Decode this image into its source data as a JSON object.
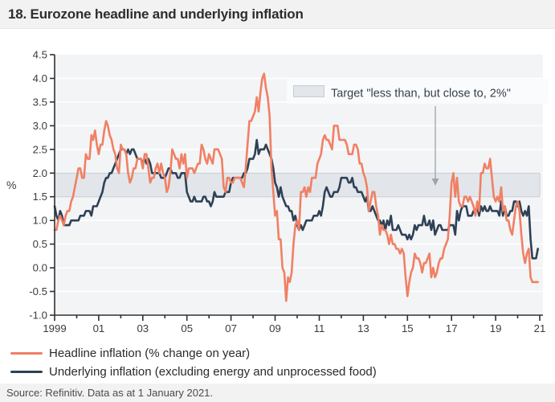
{
  "header": {
    "title": "18. Eurozone headline and underlying inflation"
  },
  "footer": {
    "source": "Source: Refinitiv. Data as at 1 January 2021."
  },
  "colors": {
    "headline": "#f08064",
    "underlying": "#2e4156",
    "plot_bg": "#f3f4f6",
    "gridline": "#ffffff",
    "band_fill": "#e2e6ea",
    "band_border": "#c6ccd3",
    "axis": "#303030",
    "tick_label": "#3b3b3b",
    "annotation_text": "#36414d",
    "annotation_bg": "#fafbfc",
    "arrow": "#9aa4ad",
    "header_bg": "#f1f2f1"
  },
  "chart_data": {
    "type": "line",
    "title": "18. Eurozone headline and underlying inflation",
    "xlabel": "",
    "ylabel": "%",
    "ylim": [
      -1.0,
      4.5
    ],
    "ytick_step": 0.5,
    "ytick_labels": [
      "4.5",
      "4.0",
      "3.5",
      "3.0",
      "2.5",
      "2.0",
      "1.5",
      "1.0",
      "0.5",
      "0.0",
      "-0.5",
      "-1.0"
    ],
    "x_start": "1999-01",
    "x_end": "2020-12",
    "frequency": "monthly",
    "x_year_range": [
      1999,
      2021
    ],
    "xtick_labels": [
      "1999",
      "01",
      "03",
      "05",
      "07",
      "09",
      "11",
      "13",
      "15",
      "17",
      "19",
      "21"
    ],
    "grid": true,
    "legend_position": "bottom-left",
    "target_band": {
      "from": 1.5,
      "to": 2.0,
      "label": "Target \"less than, but close to, 2%\""
    },
    "series": [
      {
        "name": "Headline inflation (% change on year)",
        "color": "#f08064",
        "values": [
          0.8,
          0.8,
          1.0,
          1.1,
          1.0,
          0.9,
          1.1,
          1.2,
          1.2,
          1.4,
          1.5,
          1.7,
          1.9,
          2.1,
          2.1,
          1.9,
          1.9,
          2.4,
          2.3,
          2.3,
          2.8,
          2.7,
          2.9,
          2.6,
          2.4,
          2.6,
          2.6,
          2.9,
          3.1,
          3.0,
          2.8,
          2.7,
          2.5,
          2.4,
          2.1,
          2.0,
          2.6,
          2.5,
          2.5,
          2.4,
          2.0,
          1.8,
          1.9,
          2.1,
          2.1,
          2.3,
          2.3,
          2.3,
          2.1,
          2.4,
          2.4,
          2.1,
          1.8,
          1.9,
          1.9,
          2.1,
          2.2,
          2.0,
          2.2,
          2.0,
          1.9,
          1.6,
          1.7,
          2.0,
          2.5,
          2.4,
          2.3,
          2.3,
          2.1,
          2.4,
          2.2,
          2.4,
          1.9,
          2.1,
          2.1,
          2.1,
          2.0,
          2.1,
          2.2,
          2.2,
          2.6,
          2.5,
          2.3,
          2.2,
          2.4,
          2.3,
          2.2,
          2.5,
          2.5,
          2.5,
          2.4,
          2.3,
          1.7,
          1.6,
          1.9,
          1.9,
          1.8,
          1.8,
          1.9,
          1.9,
          1.9,
          1.9,
          1.8,
          1.7,
          2.1,
          2.6,
          3.1,
          3.1,
          3.2,
          3.3,
          3.6,
          3.3,
          3.7,
          4.0,
          4.1,
          3.8,
          3.6,
          3.2,
          2.1,
          1.6,
          1.1,
          1.2,
          0.6,
          0.6,
          0.0,
          -0.1,
          -0.7,
          -0.2,
          -0.3,
          -0.1,
          0.5,
          0.9,
          1.0,
          0.8,
          1.6,
          1.6,
          1.7,
          1.5,
          1.7,
          1.6,
          1.9,
          1.9,
          1.9,
          2.2,
          2.3,
          2.4,
          2.7,
          2.8,
          2.7,
          2.7,
          2.6,
          2.5,
          3.0,
          3.0,
          3.0,
          2.7,
          2.7,
          2.7,
          2.7,
          2.6,
          2.4,
          2.4,
          2.4,
          2.6,
          2.6,
          2.5,
          2.2,
          2.2,
          2.0,
          1.9,
          1.7,
          1.2,
          1.4,
          1.6,
          1.6,
          1.3,
          1.1,
          0.7,
          0.9,
          0.8,
          0.8,
          0.7,
          0.5,
          0.7,
          0.5,
          0.5,
          0.4,
          0.4,
          0.3,
          0.4,
          0.3,
          -0.2,
          -0.6,
          -0.3,
          -0.1,
          0.0,
          0.3,
          0.2,
          0.2,
          0.1,
          -0.1,
          0.1,
          0.1,
          0.2,
          0.3,
          -0.2,
          0.0,
          -0.2,
          -0.1,
          0.1,
          0.2,
          0.2,
          0.4,
          0.5,
          0.6,
          1.1,
          1.8,
          2.0,
          1.5,
          1.9,
          1.4,
          1.3,
          1.3,
          1.5,
          1.5,
          1.4,
          1.5,
          1.4,
          1.3,
          1.1,
          1.4,
          1.2,
          2.0,
          2.0,
          2.2,
          2.1,
          2.1,
          2.3,
          1.9,
          1.5,
          1.4,
          1.5,
          1.4,
          1.7,
          1.2,
          1.3,
          1.0,
          1.0,
          0.8,
          0.7,
          1.0,
          1.3,
          1.4,
          1.2,
          0.7,
          0.3,
          0.1,
          0.3,
          0.4,
          -0.2,
          -0.3,
          -0.3,
          -0.3,
          -0.3
        ]
      },
      {
        "name": "Underlying inflation (excluding energy and unprocessed food)",
        "color": "#2e4156",
        "values": [
          1.3,
          1.1,
          1.0,
          1.2,
          1.1,
          0.9,
          0.9,
          0.9,
          0.9,
          1.0,
          1.0,
          1.0,
          1.0,
          1.0,
          1.1,
          1.1,
          1.1,
          1.2,
          1.2,
          1.2,
          1.1,
          1.3,
          1.3,
          1.3,
          1.4,
          1.5,
          1.6,
          1.8,
          1.9,
          1.9,
          2.0,
          2.0,
          2.1,
          2.2,
          2.3,
          2.4,
          2.5,
          2.5,
          2.5,
          2.4,
          2.5,
          2.4,
          2.5,
          2.5,
          2.4,
          2.3,
          2.3,
          2.3,
          2.2,
          2.3,
          2.2,
          2.3,
          2.2,
          2.0,
          2.0,
          2.0,
          2.0,
          2.0,
          1.9,
          1.9,
          1.9,
          2.0,
          2.1,
          2.1,
          2.0,
          2.0,
          2.0,
          1.9,
          1.9,
          2.0,
          2.0,
          2.0,
          1.6,
          1.5,
          1.4,
          1.4,
          1.5,
          1.4,
          1.4,
          1.4,
          1.4,
          1.5,
          1.5,
          1.4,
          1.4,
          1.3,
          1.4,
          1.6,
          1.5,
          1.5,
          1.5,
          1.5,
          1.5,
          1.6,
          1.6,
          1.6,
          1.8,
          1.9,
          1.9,
          1.9,
          1.9,
          1.9,
          1.9,
          2.0,
          2.0,
          2.1,
          2.3,
          2.3,
          2.3,
          2.4,
          2.7,
          2.4,
          2.5,
          2.5,
          2.5,
          2.6,
          2.5,
          2.4,
          2.3,
          2.1,
          1.8,
          1.7,
          1.5,
          1.7,
          1.5,
          1.4,
          1.3,
          1.3,
          1.2,
          1.2,
          1.0,
          1.1,
          0.9,
          0.8,
          0.9,
          0.8,
          0.9,
          1.0,
          1.0,
          1.0,
          1.0,
          1.1,
          1.1,
          1.1,
          1.2,
          1.1,
          1.3,
          1.6,
          1.7,
          1.6,
          1.5,
          1.5,
          1.6,
          1.6,
          1.6,
          1.7,
          1.9,
          1.9,
          1.9,
          1.9,
          1.8,
          1.8,
          1.9,
          1.7,
          1.7,
          1.6,
          1.6,
          1.6,
          1.5,
          1.4,
          1.5,
          1.2,
          1.2,
          1.3,
          1.2,
          1.1,
          1.0,
          1.0,
          0.9,
          1.0,
          0.8,
          1.0,
          0.9,
          1.1,
          0.8,
          0.8,
          0.8,
          0.9,
          0.8,
          0.7,
          0.7,
          0.7,
          0.6,
          0.7,
          0.6,
          0.7,
          0.9,
          0.8,
          0.9,
          0.9,
          0.9,
          1.1,
          0.9,
          0.9,
          1.0,
          0.8,
          1.0,
          0.7,
          0.8,
          0.9,
          0.9,
          0.8,
          0.8,
          0.8,
          0.8,
          0.9,
          0.9,
          0.9,
          0.7,
          1.2,
          1.0,
          1.2,
          1.3,
          1.3,
          1.3,
          1.1,
          1.1,
          1.1,
          1.2,
          1.2,
          1.3,
          1.1,
          1.3,
          1.2,
          1.3,
          1.2,
          1.2,
          1.3,
          1.2,
          1.2,
          1.2,
          1.2,
          1.1,
          1.4,
          1.1,
          1.3,
          1.1,
          1.1,
          1.2,
          1.2,
          1.4,
          1.4,
          1.3,
          1.4,
          1.2,
          1.1,
          1.2,
          1.1,
          1.3,
          0.6,
          0.2,
          0.2,
          0.2,
          0.4
        ]
      }
    ]
  }
}
